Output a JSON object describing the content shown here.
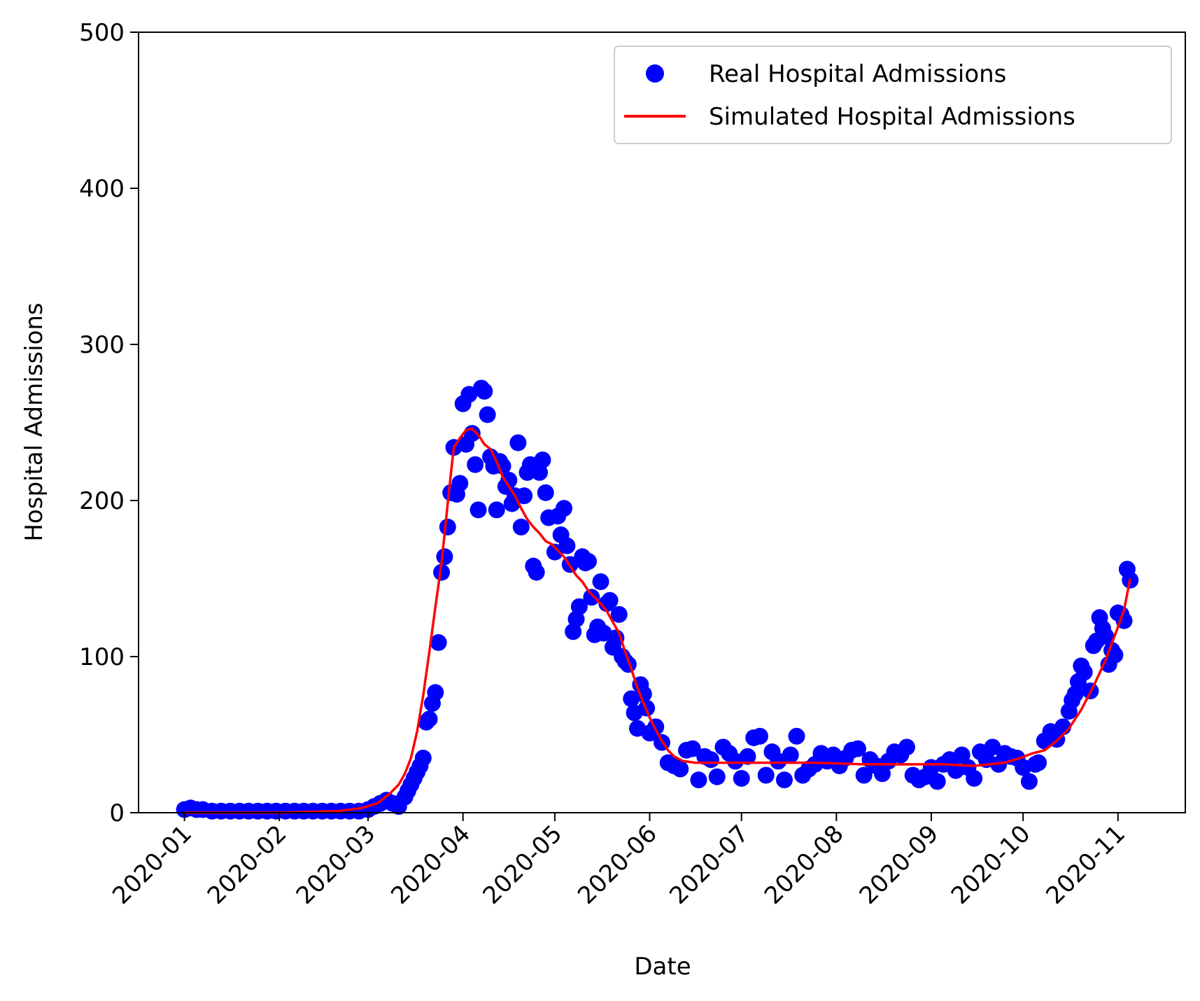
{
  "chart_data": {
    "type": "line",
    "title": "",
    "xlabel": "Date",
    "ylabel": "Hospital Admissions",
    "ylim": [
      0,
      500
    ],
    "xlim": [
      "2019-12-17",
      "2020-11-23"
    ],
    "x_tick_labels": [
      "2020-01",
      "2020-02",
      "2020-03",
      "2020-04",
      "2020-05",
      "2020-06",
      "2020-07",
      "2020-08",
      "2020-09",
      "2020-10",
      "2020-11"
    ],
    "y_tick_labels": [
      "0",
      "100",
      "200",
      "300",
      "400",
      "500"
    ],
    "grid": false,
    "legend_position": "top-right",
    "series": [
      {
        "name": "Real Hospital Admissions",
        "kind": "scatter",
        "color": "#0000ff",
        "points": [
          [
            "2020-01-01",
            2
          ],
          [
            "2020-01-03",
            3
          ],
          [
            "2020-01-05",
            2
          ],
          [
            "2020-01-07",
            2
          ],
          [
            "2020-01-10",
            1
          ],
          [
            "2020-01-13",
            1
          ],
          [
            "2020-01-16",
            1
          ],
          [
            "2020-01-19",
            1
          ],
          [
            "2020-01-22",
            1
          ],
          [
            "2020-01-25",
            1
          ],
          [
            "2020-01-28",
            1
          ],
          [
            "2020-01-31",
            1
          ],
          [
            "2020-02-03",
            1
          ],
          [
            "2020-02-06",
            1
          ],
          [
            "2020-02-09",
            1
          ],
          [
            "2020-02-12",
            1
          ],
          [
            "2020-02-15",
            1
          ],
          [
            "2020-02-18",
            1
          ],
          [
            "2020-02-21",
            1
          ],
          [
            "2020-02-24",
            1
          ],
          [
            "2020-02-27",
            1
          ],
          [
            "2020-03-01",
            2
          ],
          [
            "2020-03-03",
            4
          ],
          [
            "2020-03-05",
            6
          ],
          [
            "2020-03-07",
            8
          ],
          [
            "2020-03-09",
            6
          ],
          [
            "2020-03-11",
            4
          ],
          [
            "2020-03-13",
            10
          ],
          [
            "2020-03-14",
            14
          ],
          [
            "2020-03-15",
            18
          ],
          [
            "2020-03-16",
            22
          ],
          [
            "2020-03-17",
            26
          ],
          [
            "2020-03-18",
            30
          ],
          [
            "2020-03-19",
            35
          ],
          [
            "2020-03-20",
            58
          ],
          [
            "2020-03-21",
            60
          ],
          [
            "2020-03-22",
            70
          ],
          [
            "2020-03-23",
            77
          ],
          [
            "2020-03-24",
            109
          ],
          [
            "2020-03-25",
            154
          ],
          [
            "2020-03-26",
            164
          ],
          [
            "2020-03-27",
            183
          ],
          [
            "2020-03-28",
            205
          ],
          [
            "2020-03-29",
            234
          ],
          [
            "2020-03-30",
            204
          ],
          [
            "2020-03-31",
            211
          ],
          [
            "2020-04-01",
            262
          ],
          [
            "2020-04-02",
            236
          ],
          [
            "2020-04-03",
            268
          ],
          [
            "2020-04-04",
            243
          ],
          [
            "2020-04-05",
            223
          ],
          [
            "2020-04-06",
            194
          ],
          [
            "2020-04-07",
            272
          ],
          [
            "2020-04-08",
            270
          ],
          [
            "2020-04-09",
            255
          ],
          [
            "2020-04-10",
            228
          ],
          [
            "2020-04-11",
            222
          ],
          [
            "2020-04-12",
            194
          ],
          [
            "2020-04-13",
            225
          ],
          [
            "2020-04-14",
            222
          ],
          [
            "2020-04-15",
            209
          ],
          [
            "2020-04-16",
            213
          ],
          [
            "2020-04-17",
            198
          ],
          [
            "2020-04-18",
            203
          ],
          [
            "2020-04-19",
            237
          ],
          [
            "2020-04-20",
            183
          ],
          [
            "2020-04-21",
            203
          ],
          [
            "2020-04-22",
            218
          ],
          [
            "2020-04-23",
            223
          ],
          [
            "2020-04-24",
            158
          ],
          [
            "2020-04-25",
            154
          ],
          [
            "2020-04-26",
            218
          ],
          [
            "2020-04-27",
            226
          ],
          [
            "2020-04-28",
            205
          ],
          [
            "2020-04-29",
            189
          ],
          [
            "2020-05-01",
            167
          ],
          [
            "2020-05-02",
            190
          ],
          [
            "2020-05-03",
            178
          ],
          [
            "2020-05-04",
            195
          ],
          [
            "2020-05-05",
            171
          ],
          [
            "2020-05-06",
            159
          ],
          [
            "2020-05-07",
            116
          ],
          [
            "2020-05-08",
            124
          ],
          [
            "2020-05-09",
            132
          ],
          [
            "2020-05-10",
            164
          ],
          [
            "2020-05-11",
            160
          ],
          [
            "2020-05-12",
            161
          ],
          [
            "2020-05-13",
            138
          ],
          [
            "2020-05-14",
            114
          ],
          [
            "2020-05-15",
            119
          ],
          [
            "2020-05-16",
            148
          ],
          [
            "2020-05-17",
            115
          ],
          [
            "2020-05-18",
            134
          ],
          [
            "2020-05-19",
            136
          ],
          [
            "2020-05-20",
            106
          ],
          [
            "2020-05-21",
            112
          ],
          [
            "2020-05-22",
            127
          ],
          [
            "2020-05-23",
            100
          ],
          [
            "2020-05-24",
            97
          ],
          [
            "2020-05-25",
            95
          ],
          [
            "2020-05-26",
            73
          ],
          [
            "2020-05-27",
            64
          ],
          [
            "2020-05-28",
            54
          ],
          [
            "2020-05-29",
            82
          ],
          [
            "2020-05-30",
            76
          ],
          [
            "2020-05-31",
            67
          ],
          [
            "2020-06-01",
            51
          ],
          [
            "2020-06-03",
            55
          ],
          [
            "2020-06-05",
            45
          ],
          [
            "2020-06-07",
            32
          ],
          [
            "2020-06-09",
            30
          ],
          [
            "2020-06-11",
            28
          ],
          [
            "2020-06-13",
            40
          ],
          [
            "2020-06-15",
            41
          ],
          [
            "2020-06-17",
            21
          ],
          [
            "2020-06-19",
            36
          ],
          [
            "2020-06-21",
            34
          ],
          [
            "2020-06-23",
            23
          ],
          [
            "2020-06-25",
            42
          ],
          [
            "2020-06-27",
            38
          ],
          [
            "2020-06-29",
            33
          ],
          [
            "2020-07-01",
            22
          ],
          [
            "2020-07-03",
            36
          ],
          [
            "2020-07-05",
            48
          ],
          [
            "2020-07-07",
            49
          ],
          [
            "2020-07-09",
            24
          ],
          [
            "2020-07-11",
            39
          ],
          [
            "2020-07-13",
            33
          ],
          [
            "2020-07-15",
            21
          ],
          [
            "2020-07-17",
            37
          ],
          [
            "2020-07-19",
            49
          ],
          [
            "2020-07-21",
            24
          ],
          [
            "2020-07-23",
            28
          ],
          [
            "2020-07-25",
            31
          ],
          [
            "2020-07-27",
            38
          ],
          [
            "2020-07-29",
            33
          ],
          [
            "2020-07-31",
            37
          ],
          [
            "2020-08-02",
            30
          ],
          [
            "2020-08-04",
            35
          ],
          [
            "2020-08-06",
            40
          ],
          [
            "2020-08-08",
            41
          ],
          [
            "2020-08-10",
            24
          ],
          [
            "2020-08-12",
            34
          ],
          [
            "2020-08-14",
            30
          ],
          [
            "2020-08-16",
            25
          ],
          [
            "2020-08-18",
            33
          ],
          [
            "2020-08-20",
            39
          ],
          [
            "2020-08-22",
            37
          ],
          [
            "2020-08-24",
            42
          ],
          [
            "2020-08-26",
            24
          ],
          [
            "2020-08-28",
            21
          ],
          [
            "2020-08-30",
            23
          ],
          [
            "2020-09-01",
            29
          ],
          [
            "2020-09-03",
            20
          ],
          [
            "2020-09-05",
            31
          ],
          [
            "2020-09-07",
            34
          ],
          [
            "2020-09-09",
            27
          ],
          [
            "2020-09-11",
            37
          ],
          [
            "2020-09-13",
            29
          ],
          [
            "2020-09-15",
            22
          ],
          [
            "2020-09-17",
            39
          ],
          [
            "2020-09-19",
            34
          ],
          [
            "2020-09-21",
            42
          ],
          [
            "2020-09-23",
            31
          ],
          [
            "2020-09-25",
            38
          ],
          [
            "2020-09-27",
            36
          ],
          [
            "2020-09-29",
            35
          ],
          [
            "2020-10-01",
            29
          ],
          [
            "2020-10-03",
            20
          ],
          [
            "2020-10-05",
            31
          ],
          [
            "2020-10-06",
            32
          ],
          [
            "2020-10-08",
            46
          ],
          [
            "2020-10-10",
            52
          ],
          [
            "2020-10-12",
            47
          ],
          [
            "2020-10-14",
            55
          ],
          [
            "2020-10-16",
            65
          ],
          [
            "2020-10-17",
            72
          ],
          [
            "2020-10-18",
            76
          ],
          [
            "2020-10-19",
            84
          ],
          [
            "2020-10-20",
            94
          ],
          [
            "2020-10-21",
            90
          ],
          [
            "2020-10-23",
            78
          ],
          [
            "2020-10-24",
            107
          ],
          [
            "2020-10-25",
            110
          ],
          [
            "2020-10-26",
            125
          ],
          [
            "2020-10-27",
            118
          ],
          [
            "2020-10-28",
            113
          ],
          [
            "2020-10-29",
            95
          ],
          [
            "2020-10-30",
            104
          ],
          [
            "2020-10-31",
            101
          ],
          [
            "2020-11-01",
            128
          ],
          [
            "2020-11-02",
            127
          ],
          [
            "2020-11-03",
            123
          ],
          [
            "2020-11-04",
            156
          ],
          [
            "2020-11-05",
            149
          ]
        ]
      },
      {
        "name": "Simulated Hospital Admissions",
        "kind": "line",
        "color": "#ff0000",
        "points": [
          [
            "2020-01-01",
            0
          ],
          [
            "2020-02-01",
            0
          ],
          [
            "2020-02-20",
            1
          ],
          [
            "2020-02-28",
            3
          ],
          [
            "2020-03-04",
            6
          ],
          [
            "2020-03-08",
            12
          ],
          [
            "2020-03-11",
            18
          ],
          [
            "2020-03-13",
            25
          ],
          [
            "2020-03-15",
            35
          ],
          [
            "2020-03-17",
            52
          ],
          [
            "2020-03-19",
            75
          ],
          [
            "2020-03-21",
            103
          ],
          [
            "2020-03-23",
            132
          ],
          [
            "2020-03-25",
            160
          ],
          [
            "2020-03-27",
            198
          ],
          [
            "2020-03-29",
            234
          ],
          [
            "2020-03-31",
            240
          ],
          [
            "2020-04-02",
            245
          ],
          [
            "2020-04-04",
            246
          ],
          [
            "2020-04-06",
            242
          ],
          [
            "2020-04-08",
            236
          ],
          [
            "2020-04-10",
            233
          ],
          [
            "2020-04-12",
            225
          ],
          [
            "2020-04-14",
            215
          ],
          [
            "2020-04-16",
            209
          ],
          [
            "2020-04-18",
            203
          ],
          [
            "2020-04-20",
            195
          ],
          [
            "2020-04-22",
            188
          ],
          [
            "2020-04-24",
            183
          ],
          [
            "2020-04-26",
            179
          ],
          [
            "2020-04-28",
            174
          ],
          [
            "2020-04-30",
            172
          ],
          [
            "2020-05-02",
            168
          ],
          [
            "2020-05-04",
            164
          ],
          [
            "2020-05-06",
            158
          ],
          [
            "2020-05-08",
            152
          ],
          [
            "2020-05-10",
            148
          ],
          [
            "2020-05-12",
            142
          ],
          [
            "2020-05-14",
            138
          ],
          [
            "2020-05-16",
            134
          ],
          [
            "2020-05-18",
            129
          ],
          [
            "2020-05-20",
            122
          ],
          [
            "2020-05-22",
            115
          ],
          [
            "2020-05-24",
            103
          ],
          [
            "2020-05-26",
            92
          ],
          [
            "2020-05-28",
            80
          ],
          [
            "2020-05-30",
            70
          ],
          [
            "2020-06-01",
            61
          ],
          [
            "2020-06-03",
            53
          ],
          [
            "2020-06-05",
            46
          ],
          [
            "2020-06-07",
            40
          ],
          [
            "2020-06-09",
            36
          ],
          [
            "2020-06-12",
            33
          ],
          [
            "2020-06-16",
            32
          ],
          [
            "2020-06-25",
            32
          ],
          [
            "2020-07-10",
            32
          ],
          [
            "2020-07-25",
            32
          ],
          [
            "2020-08-10",
            31
          ],
          [
            "2020-08-25",
            31
          ],
          [
            "2020-09-05",
            31
          ],
          [
            "2020-09-15",
            30
          ],
          [
            "2020-09-20",
            31
          ],
          [
            "2020-09-25",
            32
          ],
          [
            "2020-09-30",
            35
          ],
          [
            "2020-10-04",
            38
          ],
          [
            "2020-10-08",
            40
          ],
          [
            "2020-10-12",
            46
          ],
          [
            "2020-10-16",
            54
          ],
          [
            "2020-10-20",
            66
          ],
          [
            "2020-10-24",
            81
          ],
          [
            "2020-10-28",
            98
          ],
          [
            "2020-11-01",
            119
          ],
          [
            "2020-11-03",
            130
          ],
          [
            "2020-11-05",
            150
          ]
        ]
      }
    ]
  }
}
